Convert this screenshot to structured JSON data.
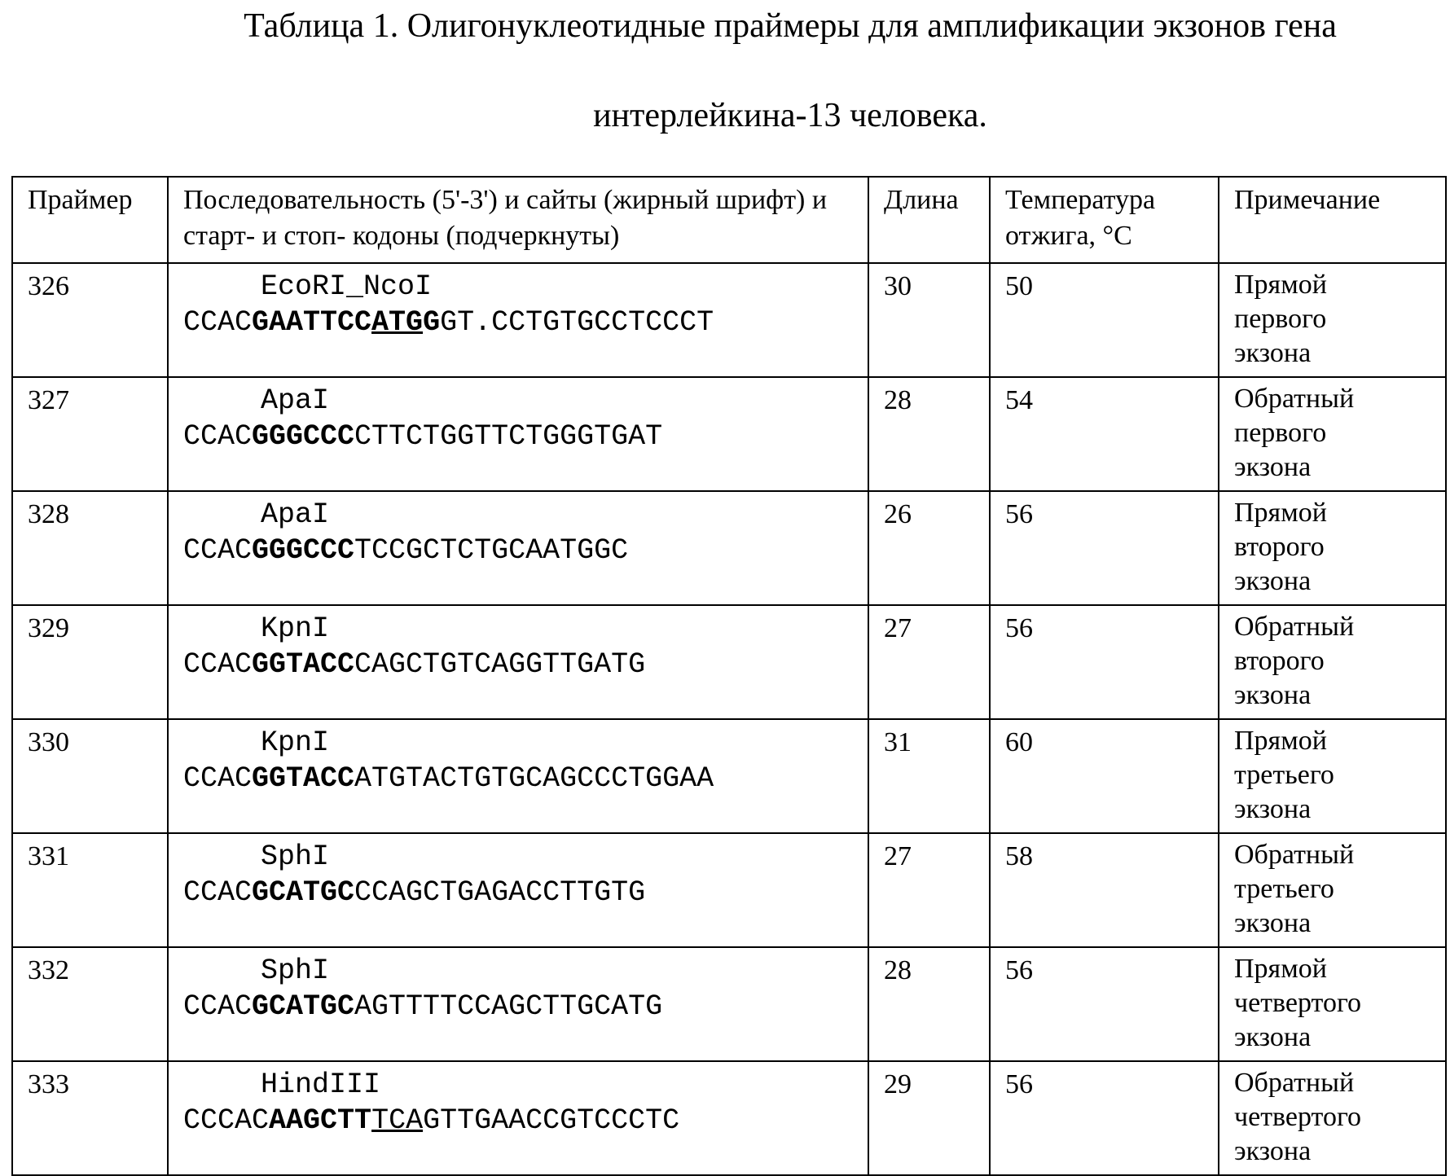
{
  "header": {
    "title_lines": [
      "Таблица 1. Олигонуклеотидные праймеры для амплификации экзонов гена",
      "интерлейкина-13 человека."
    ]
  },
  "table": {
    "columns": [
      "Праймер",
      "Последовательность (5'-3') и сайты (жирный шрифт) и старт- и стоп- кодоны (подчеркнуты)",
      "Длина",
      "Температура отжига, °C",
      "Примечание"
    ],
    "rows": [
      {
        "primer": "326",
        "site": "EcoRI_NcoI",
        "sequence": [
          {
            "text": "CCAC"
          },
          {
            "text": "GAATTCC",
            "bold": true
          },
          {
            "text": "ATG",
            "bold": true,
            "underline": true
          },
          {
            "text": "G",
            "bold": true
          },
          {
            "text": "GT.CCTGTGCCTCCCT"
          }
        ],
        "length": 30,
        "temperature": 50,
        "note": [
          "Прямой",
          "первого",
          "экзона"
        ]
      },
      {
        "primer": "327",
        "site": "ApaI",
        "sequence": [
          {
            "text": "CCAC"
          },
          {
            "text": "GGGCCC",
            "bold": true
          },
          {
            "text": "CTTCTGGTTCTGGGTGAT"
          }
        ],
        "length": 28,
        "temperature": 54,
        "note": [
          "Обратный",
          "первого",
          "экзона"
        ]
      },
      {
        "primer": "328",
        "site": "ApaI",
        "sequence": [
          {
            "text": "CCAC"
          },
          {
            "text": "GGGCCC",
            "bold": true
          },
          {
            "text": "TCCGCTCTGCAATGGC"
          }
        ],
        "length": 26,
        "temperature": 56,
        "note": [
          "Прямой",
          "второго",
          "экзона"
        ]
      },
      {
        "primer": "329",
        "site": "KpnI",
        "sequence": [
          {
            "text": "CCAC"
          },
          {
            "text": "GGTACC",
            "bold": true
          },
          {
            "text": "CAGCTGTCAGGTTGATG"
          }
        ],
        "length": 27,
        "temperature": 56,
        "note": [
          "Обратный",
          "второго",
          "экзона"
        ]
      },
      {
        "primer": "330",
        "site": "KpnI",
        "sequence": [
          {
            "text": "CCAC"
          },
          {
            "text": "GGTACC",
            "bold": true
          },
          {
            "text": "ATGTACTGTGCAGCCCTGGAA"
          }
        ],
        "length": 31,
        "temperature": 60,
        "note": [
          "Прямой",
          "третьего",
          "экзона"
        ]
      },
      {
        "primer": "331",
        "site": "SphI",
        "sequence": [
          {
            "text": "CCAC"
          },
          {
            "text": "GCATGC",
            "bold": true
          },
          {
            "text": "CCAGCTGAGACCTTGTG"
          }
        ],
        "length": 27,
        "temperature": 58,
        "note": [
          "Обратный",
          "третьего",
          "экзона"
        ]
      },
      {
        "primer": "332",
        "site": "SphI",
        "sequence": [
          {
            "text": "CCAC"
          },
          {
            "text": "GCATGC",
            "bold": true
          },
          {
            "text": "AGTTTTCCAGCTTGCATG"
          }
        ],
        "length": 28,
        "temperature": 56,
        "note": [
          "Прямой",
          "четвертого",
          "экзона"
        ]
      },
      {
        "primer": "333",
        "site": "HindIII",
        "sequence": [
          {
            "text": "CCCAC"
          },
          {
            "text": "AAGCTT",
            "bold": true
          },
          {
            "text": "TCA",
            "underline": true
          },
          {
            "text": "GTTGAACCGTCCCTC"
          }
        ],
        "length": 29,
        "temperature": 56,
        "note": [
          "Обратный",
          "четвертого",
          "экзона"
        ]
      }
    ]
  }
}
